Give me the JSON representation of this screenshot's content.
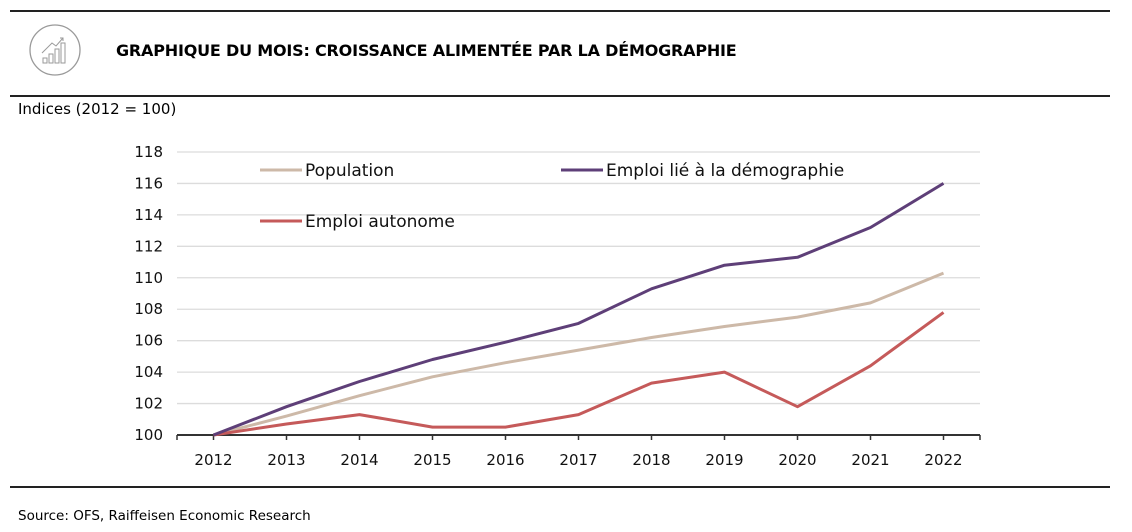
{
  "header": {
    "title": "GRAPHIQUE DU MOIS: CROISSANCE ALIMENTÉE PAR LA DÉMOGRAPHIE",
    "logo_icon": "rising-bar-chart-icon"
  },
  "unit_note": "Indices (2012 = 100)",
  "source": "Source: OFS, Raiffeisen Economic Research",
  "chart_data": {
    "type": "line",
    "title": "GRAPHIQUE DU MOIS: CROISSANCE ALIMENTÉE PAR LA DÉMOGRAPHIE",
    "xlabel": "",
    "ylabel": "Indices (2012 = 100)",
    "x": [
      "2012",
      "2013",
      "2014",
      "2015",
      "2016",
      "2017",
      "2018",
      "2019",
      "2020",
      "2021",
      "2022"
    ],
    "ylim": [
      100,
      118
    ],
    "yticks": [
      100,
      102,
      104,
      106,
      108,
      110,
      112,
      114,
      116,
      118
    ],
    "grid": true,
    "legend_placement": "top",
    "series": [
      {
        "name": "Population",
        "color": "#cdb9a8",
        "values": [
          100,
          101.2,
          102.5,
          103.7,
          104.6,
          105.4,
          106.2,
          106.9,
          107.5,
          108.4,
          110.3
        ]
      },
      {
        "name": "Emploi lié à la démographie",
        "color": "#5e3f78",
        "values": [
          100,
          101.8,
          103.4,
          104.8,
          105.9,
          107.1,
          109.3,
          110.8,
          111.3,
          113.2,
          116.0
        ]
      },
      {
        "name": "Emploi autonome",
        "color": "#c55a5a",
        "values": [
          100,
          100.7,
          101.3,
          100.5,
          100.5,
          101.3,
          103.3,
          104.0,
          101.8,
          104.4,
          107.8
        ]
      }
    ]
  }
}
